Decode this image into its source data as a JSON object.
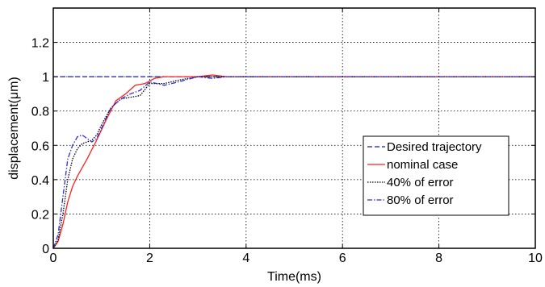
{
  "chart_data": {
    "type": "line",
    "title": "",
    "xlabel": "Time(ms)",
    "ylabel": "displacement(μm)",
    "xlim": [
      0,
      10
    ],
    "ylim": [
      0,
      1.4
    ],
    "xticks": [
      "0",
      "2",
      "4",
      "6",
      "8",
      "10"
    ],
    "yticks": [
      "0",
      "0.2",
      "0.4",
      "0.6",
      "0.8",
      "1",
      "1.2"
    ],
    "grid": true,
    "legend_position": "right",
    "series": [
      {
        "name": "Desired trajectory",
        "color": "#1a1aa8",
        "style": "dashed",
        "x": [
          0,
          10
        ],
        "y": [
          1.0,
          1.0
        ]
      },
      {
        "name": "nominal case",
        "color": "#ff2020",
        "style": "solid",
        "x": [
          0,
          0.1,
          0.2,
          0.3,
          0.4,
          0.5,
          0.7,
          0.9,
          1.1,
          1.3,
          1.5,
          1.7,
          1.9,
          2.1,
          2.3,
          2.6,
          3.0,
          3.3,
          3.6,
          4.0,
          5.0,
          6.0,
          7.0,
          8.0,
          9.0,
          10.0
        ],
        "y": [
          0,
          0.04,
          0.14,
          0.27,
          0.36,
          0.42,
          0.52,
          0.63,
          0.75,
          0.86,
          0.9,
          0.95,
          0.96,
          0.99,
          1.0,
          1.0,
          1.0,
          1.01,
          1.0,
          1.0,
          1.0,
          1.0,
          1.0,
          1.0,
          1.0,
          1.0
        ]
      },
      {
        "name": "40% of error",
        "color": "#000000",
        "style": "dotted",
        "x": [
          0,
          0.1,
          0.2,
          0.3,
          0.4,
          0.5,
          0.6,
          0.7,
          0.8,
          0.9,
          1.0,
          1.2,
          1.4,
          1.6,
          1.8,
          2.0,
          2.3,
          2.6,
          3.0,
          3.3,
          3.6,
          4.0,
          5.0,
          6.0,
          7.0,
          8.0,
          9.0,
          10.0
        ],
        "y": [
          0,
          0.05,
          0.2,
          0.4,
          0.52,
          0.58,
          0.61,
          0.62,
          0.63,
          0.66,
          0.72,
          0.82,
          0.87,
          0.88,
          0.89,
          0.96,
          0.96,
          0.98,
          1.0,
          1.0,
          1.0,
          1.0,
          1.0,
          1.0,
          1.0,
          1.0,
          1.0,
          1.0
        ]
      },
      {
        "name": "80% of error",
        "color": "#3030d0",
        "style": "dashdot",
        "x": [
          0,
          0.1,
          0.2,
          0.3,
          0.4,
          0.5,
          0.6,
          0.7,
          0.8,
          0.9,
          1.0,
          1.2,
          1.4,
          1.6,
          1.8,
          2.0,
          2.3,
          2.6,
          3.0,
          3.3,
          3.6,
          4.0,
          5.0,
          6.0,
          7.0,
          8.0,
          9.0,
          10.0
        ],
        "y": [
          0,
          0.08,
          0.3,
          0.52,
          0.6,
          0.65,
          0.66,
          0.64,
          0.62,
          0.64,
          0.7,
          0.82,
          0.87,
          0.9,
          0.92,
          0.97,
          0.95,
          0.97,
          1.0,
          0.99,
          1.0,
          1.0,
          1.0,
          1.0,
          1.0,
          1.0,
          1.0,
          1.0
        ]
      }
    ]
  }
}
